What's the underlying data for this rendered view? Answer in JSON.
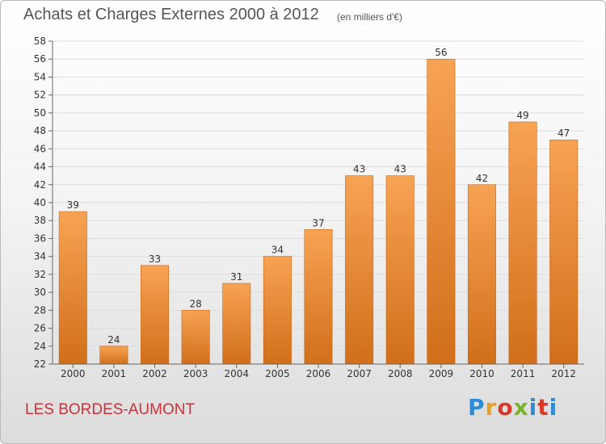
{
  "header": {
    "title": "Achats et Charges Externes 2000 à 2012",
    "unit": "(en milliers d'€)"
  },
  "footer": {
    "commune": "LES BORDES-AUMONT",
    "logo": "Proxiti"
  },
  "colors": {
    "bar_top": "#f7a354",
    "bar_bottom": "#d16f1a",
    "grid": "#dddddd",
    "axis": "#666666",
    "commune": "#c8333b",
    "logo": [
      "#2e8bd6",
      "#e8a020",
      "#d83a2a",
      "#7ab428",
      "#2e8bd6",
      "#d83a2a",
      "#2e8bd6"
    ]
  },
  "chart_data": {
    "type": "bar",
    "title": "Achats et Charges Externes 2000 à 2012",
    "subtitle": "(en milliers d'€)",
    "categories": [
      "2000",
      "2001",
      "2002",
      "2003",
      "2004",
      "2005",
      "2006",
      "2007",
      "2008",
      "2009",
      "2010",
      "2011",
      "2012"
    ],
    "values": [
      39,
      24,
      33,
      28,
      31,
      34,
      37,
      43,
      43,
      56,
      42,
      49,
      47
    ],
    "ylim": [
      22,
      58
    ],
    "yticks": [
      22,
      24,
      26,
      28,
      30,
      32,
      34,
      36,
      38,
      40,
      42,
      44,
      46,
      48,
      50,
      52,
      54,
      56,
      58
    ],
    "grid": true,
    "legend": "none"
  }
}
